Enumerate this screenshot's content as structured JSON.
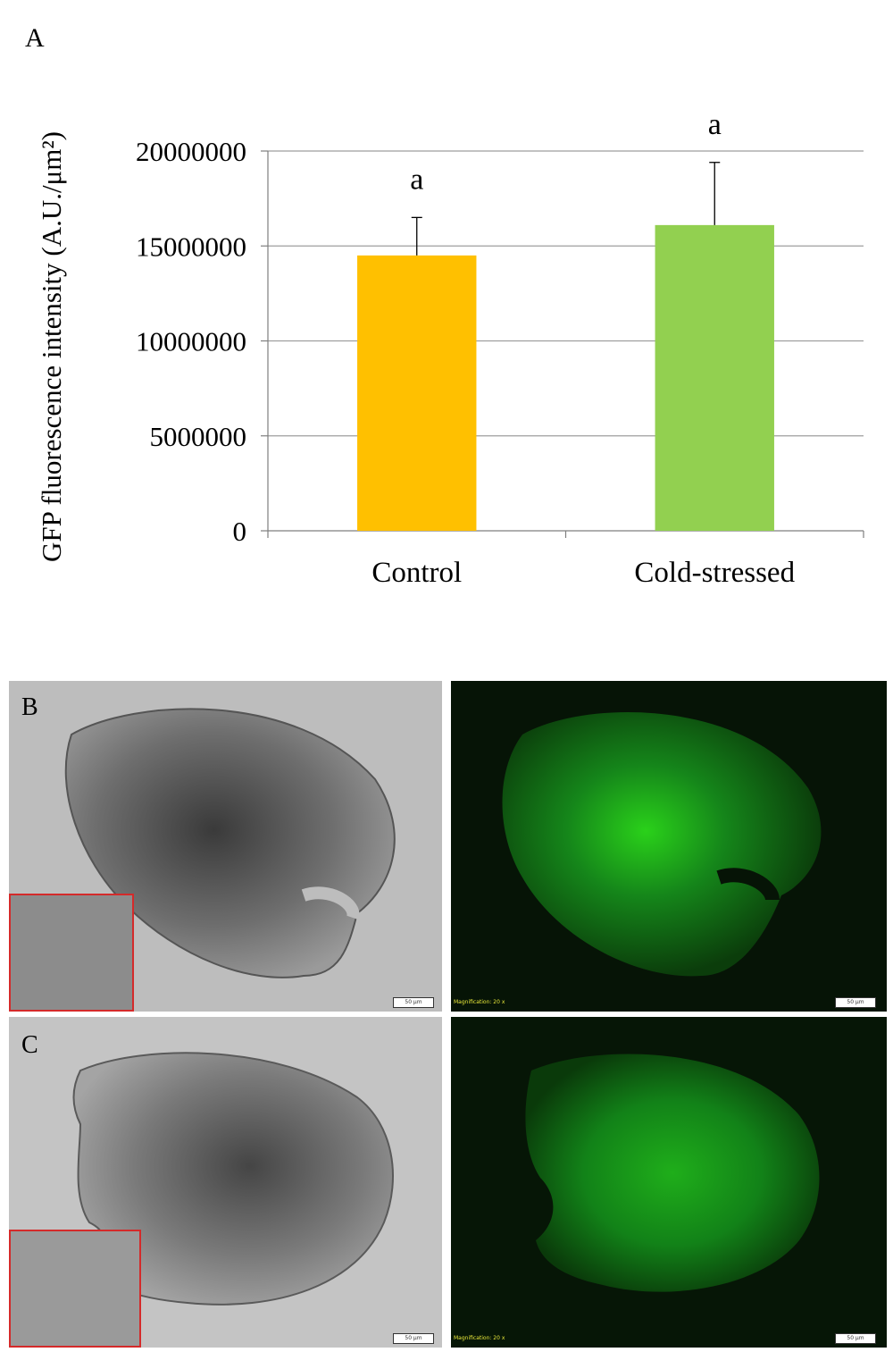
{
  "panel_labels": {
    "a": "A",
    "b": "B",
    "c": "C"
  },
  "chart_data": {
    "type": "bar",
    "title": "",
    "xlabel": "",
    "ylabel": "GFP fluorescence intensity (A.U./μm²)",
    "ylim": [
      0,
      20000000
    ],
    "yticks": [
      "0",
      "5000000",
      "10000000",
      "15000000",
      "20000000"
    ],
    "ytick_values": [
      0,
      5000000,
      10000000,
      15000000,
      20000000
    ],
    "categories": [
      "Control",
      "Cold-stressed"
    ],
    "values": [
      14500000,
      16100000
    ],
    "errors": [
      2000000,
      3300000
    ],
    "annotations": [
      "a",
      "a"
    ],
    "colors": [
      "#ffc000",
      "#92d050"
    ],
    "grid": true
  },
  "micrographs": {
    "magnification_b": "Magnification: 20 x",
    "magnification_c": "Magnification: 20 x",
    "scale_bar": "50 μm"
  }
}
